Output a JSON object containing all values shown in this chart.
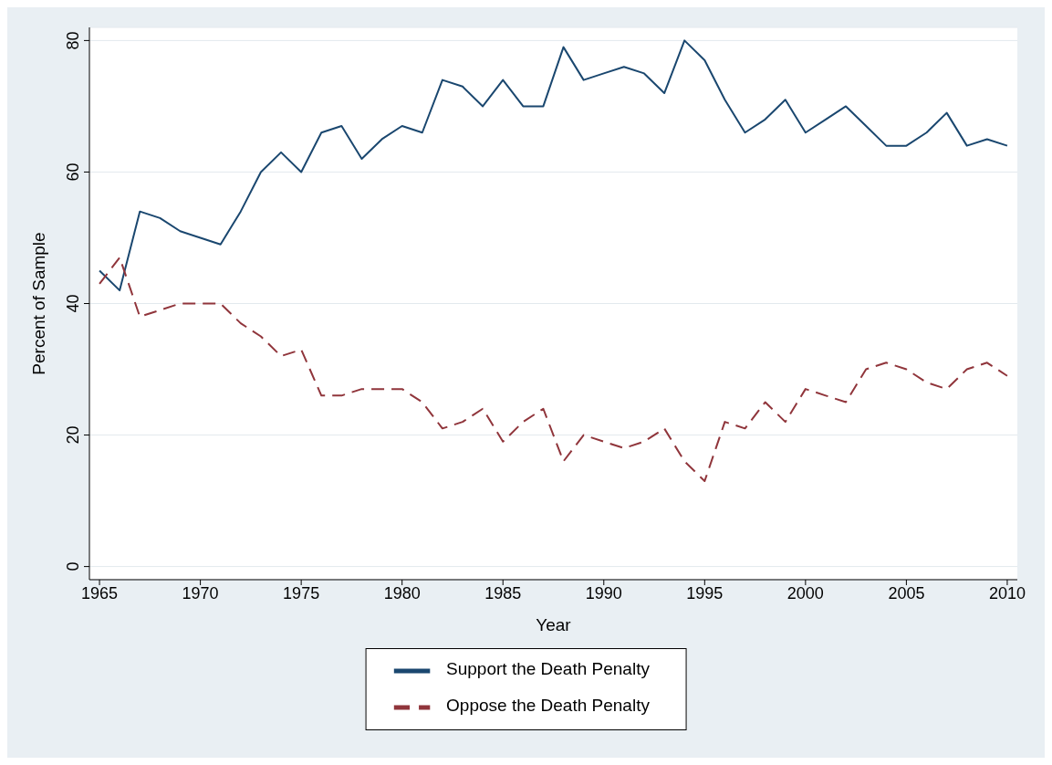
{
  "chart_data": {
    "type": "line",
    "xlabel": "Year",
    "ylabel": "Percent of Sample",
    "x": [
      1965,
      1966,
      1967,
      1968,
      1969,
      1970,
      1971,
      1972,
      1973,
      1974,
      1975,
      1976,
      1977,
      1978,
      1979,
      1980,
      1981,
      1982,
      1983,
      1984,
      1985,
      1986,
      1987,
      1988,
      1989,
      1990,
      1991,
      1992,
      1993,
      1994,
      1995,
      1996,
      1997,
      1998,
      1999,
      2000,
      2001,
      2002,
      2003,
      2004,
      2005,
      2006,
      2007,
      2008,
      2009,
      2010
    ],
    "series": [
      {
        "name": "Support the Death Penalty",
        "color": "#1a476f",
        "line_style": "solid",
        "values": [
          45,
          42,
          54,
          53,
          51,
          50,
          49,
          54,
          60,
          63,
          60,
          66,
          67,
          62,
          65,
          67,
          66,
          74,
          73,
          70,
          74,
          70,
          70,
          79,
          74,
          75,
          76,
          75,
          72,
          80,
          77,
          71,
          66,
          68,
          71,
          66,
          68,
          70,
          67,
          64,
          64,
          66,
          69,
          64,
          65,
          64
        ]
      },
      {
        "name": "Oppose the Death Penalty",
        "color": "#90353b",
        "line_style": "dashed",
        "values": [
          43,
          47,
          38,
          39,
          40,
          40,
          40,
          37,
          35,
          32,
          33,
          26,
          26,
          27,
          27,
          27,
          25,
          21,
          22,
          24,
          19,
          22,
          24,
          16,
          20,
          19,
          18,
          19,
          21,
          16,
          13,
          22,
          21,
          25,
          22,
          27,
          26,
          25,
          30,
          31,
          30,
          28,
          27,
          30,
          31,
          29
        ]
      }
    ],
    "xlim": [
      1964.5,
      2010.5
    ],
    "xticks": [
      1965,
      1970,
      1975,
      1980,
      1985,
      1990,
      1995,
      2000,
      2005,
      2010
    ],
    "ylim": [
      -2,
      82
    ],
    "yticks": [
      0,
      20,
      40,
      60,
      80
    ],
    "grid": "y",
    "legend": "bottom",
    "marker": "none"
  }
}
